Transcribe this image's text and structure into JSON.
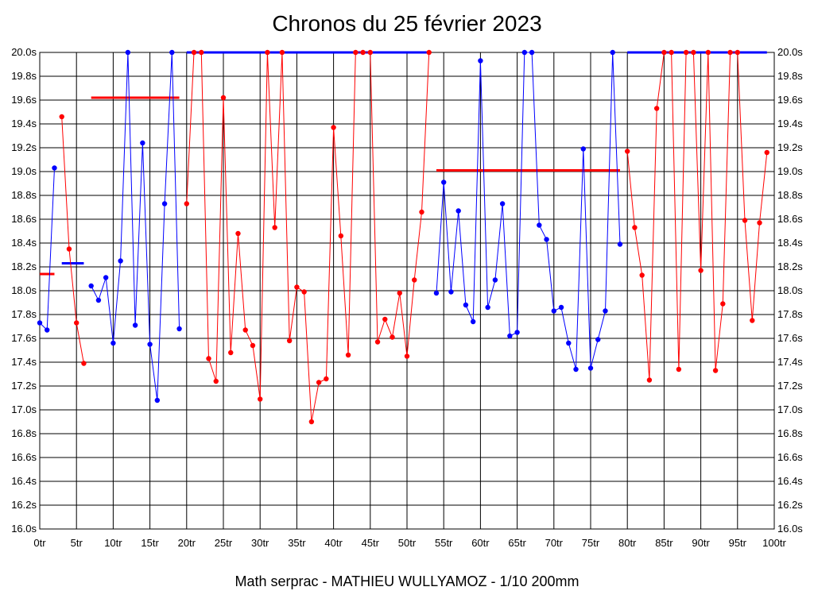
{
  "chart_data": {
    "type": "line",
    "title": "Chronos du 25 février 2023",
    "subtitle": "Math serprac - MATHIEU WULLYAMOZ - 1/10 200mm",
    "xlabel": "",
    "ylabel": "",
    "xlim": [
      0,
      100
    ],
    "ylim": [
      16.0,
      20.0
    ],
    "grid": true,
    "legend": "none",
    "x_ticks": [
      "0tr",
      "5tr",
      "10tr",
      "15tr",
      "20tr",
      "25tr",
      "30tr",
      "35tr",
      "40tr",
      "45tr",
      "50tr",
      "55tr",
      "60tr",
      "65tr",
      "70tr",
      "75tr",
      "80tr",
      "85tr",
      "90tr",
      "95tr",
      "100tr"
    ],
    "y_ticks": [
      "20.0s",
      "19.8s",
      "19.6s",
      "19.4s",
      "19.2s",
      "19.0s",
      "18.8s",
      "18.6s",
      "18.4s",
      "18.2s",
      "18.0s",
      "17.8s",
      "17.6s",
      "17.4s",
      "17.2s",
      "17.0s",
      "16.8s",
      "16.6s",
      "16.4s",
      "16.2s",
      "16.0s"
    ],
    "series": [
      {
        "color": "#0000ff",
        "points": [
          [
            0,
            17.73
          ],
          [
            1,
            17.67
          ],
          [
            2,
            19.03
          ]
        ]
      },
      {
        "color": "#ff0000",
        "points": [
          [
            3,
            19.46
          ],
          [
            4,
            18.35
          ],
          [
            5,
            17.73
          ],
          [
            6,
            17.39
          ]
        ]
      },
      {
        "color": "#0000ff",
        "points": [
          [
            7,
            18.04
          ],
          [
            8,
            17.92
          ],
          [
            9,
            18.11
          ],
          [
            10,
            17.56
          ],
          [
            11,
            18.25
          ],
          [
            12,
            20.0
          ],
          [
            13,
            17.71
          ],
          [
            14,
            19.24
          ],
          [
            15,
            17.55
          ],
          [
            16,
            17.08
          ],
          [
            17,
            18.73
          ],
          [
            18,
            20.0
          ],
          [
            19,
            17.68
          ]
        ]
      },
      {
        "color": "#ff0000",
        "points": [
          [
            20,
            18.73
          ],
          [
            21,
            20.0
          ],
          [
            22,
            20.0
          ],
          [
            23,
            17.43
          ],
          [
            24,
            17.24
          ],
          [
            25,
            19.62
          ],
          [
            26,
            17.48
          ],
          [
            27,
            18.48
          ],
          [
            28,
            17.67
          ],
          [
            29,
            17.54
          ],
          [
            30,
            17.09
          ],
          [
            31,
            20.0
          ],
          [
            32,
            18.53
          ],
          [
            33,
            20.0
          ],
          [
            34,
            17.58
          ],
          [
            35,
            18.03
          ],
          [
            36,
            17.99
          ],
          [
            37,
            16.9
          ],
          [
            38,
            17.23
          ],
          [
            39,
            17.26
          ],
          [
            40,
            19.37
          ],
          [
            41,
            18.46
          ],
          [
            42,
            17.46
          ],
          [
            43,
            20.0
          ],
          [
            44,
            20.0
          ],
          [
            45,
            20.0
          ],
          [
            46,
            17.57
          ],
          [
            47,
            17.76
          ],
          [
            48,
            17.61
          ],
          [
            49,
            17.98
          ],
          [
            50,
            17.45
          ],
          [
            51,
            18.09
          ],
          [
            52,
            18.66
          ],
          [
            53,
            20.0
          ]
        ]
      },
      {
        "color": "#0000ff",
        "points": [
          [
            54,
            17.98
          ],
          [
            55,
            18.91
          ],
          [
            56,
            17.99
          ],
          [
            57,
            18.67
          ],
          [
            58,
            17.88
          ],
          [
            59,
            17.74
          ],
          [
            60,
            19.93
          ],
          [
            61,
            17.86
          ],
          [
            62,
            18.09
          ],
          [
            63,
            18.73
          ],
          [
            64,
            17.62
          ],
          [
            65,
            17.65
          ],
          [
            66,
            20.0
          ],
          [
            67,
            20.0
          ],
          [
            68,
            18.55
          ],
          [
            69,
            18.43
          ],
          [
            70,
            17.83
          ],
          [
            71,
            17.86
          ],
          [
            72,
            17.56
          ],
          [
            73,
            17.34
          ],
          [
            74,
            19.19
          ],
          [
            75,
            17.35
          ],
          [
            76,
            17.59
          ],
          [
            77,
            17.83
          ],
          [
            78,
            20.0
          ],
          [
            79,
            18.39
          ]
        ]
      },
      {
        "color": "#ff0000",
        "points": [
          [
            80,
            19.17
          ],
          [
            81,
            18.53
          ],
          [
            82,
            18.13
          ],
          [
            83,
            17.25
          ],
          [
            84,
            19.53
          ],
          [
            85,
            20.0
          ],
          [
            86,
            20.0
          ],
          [
            87,
            17.34
          ],
          [
            88,
            20.0
          ],
          [
            89,
            20.0
          ],
          [
            90,
            18.17
          ],
          [
            91,
            20.0
          ],
          [
            92,
            17.33
          ],
          [
            93,
            17.89
          ],
          [
            94,
            20.0
          ],
          [
            95,
            20.0
          ],
          [
            96,
            18.59
          ],
          [
            97,
            17.75
          ],
          [
            98,
            18.57
          ],
          [
            99,
            19.16
          ]
        ]
      }
    ],
    "average_lines": [
      {
        "color": "#ff0000",
        "x_start": 0,
        "x_end": 2,
        "y": 18.14
      },
      {
        "color": "#0000ff",
        "x_start": 3,
        "x_end": 6,
        "y": 18.23
      },
      {
        "color": "#ff0000",
        "x_start": 7,
        "x_end": 19,
        "y": 19.62
      },
      {
        "color": "#0000ff",
        "x_start": 20,
        "x_end": 53,
        "y": 20.0
      },
      {
        "color": "#ff0000",
        "x_start": 54,
        "x_end": 79,
        "y": 19.01
      },
      {
        "color": "#0000ff",
        "x_start": 80,
        "x_end": 99,
        "y": 20.0
      }
    ]
  }
}
